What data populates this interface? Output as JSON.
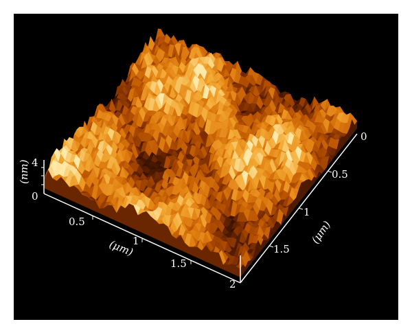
{
  "chart_data": {
    "type": "surface",
    "description_visible": "3D AFM topography surface",
    "colormap": [
      "#3a1200",
      "#7a2c00",
      "#b85200",
      "#e07d10",
      "#f3aa35",
      "#ffe9a8"
    ],
    "background": "#000000",
    "axes": {
      "x": {
        "label": "(μm)",
        "ticks": [
          "0.5",
          "1",
          "1.5",
          "2"
        ],
        "range": [
          0,
          2
        ]
      },
      "y": {
        "label": "(μm)",
        "ticks": [
          "0",
          "0.5",
          "1",
          "1.5"
        ],
        "range": [
          0,
          2
        ]
      },
      "z": {
        "label": "(nm)",
        "ticks": [
          "0",
          "4"
        ],
        "range": [
          0,
          4
        ]
      }
    },
    "grid": false
  }
}
